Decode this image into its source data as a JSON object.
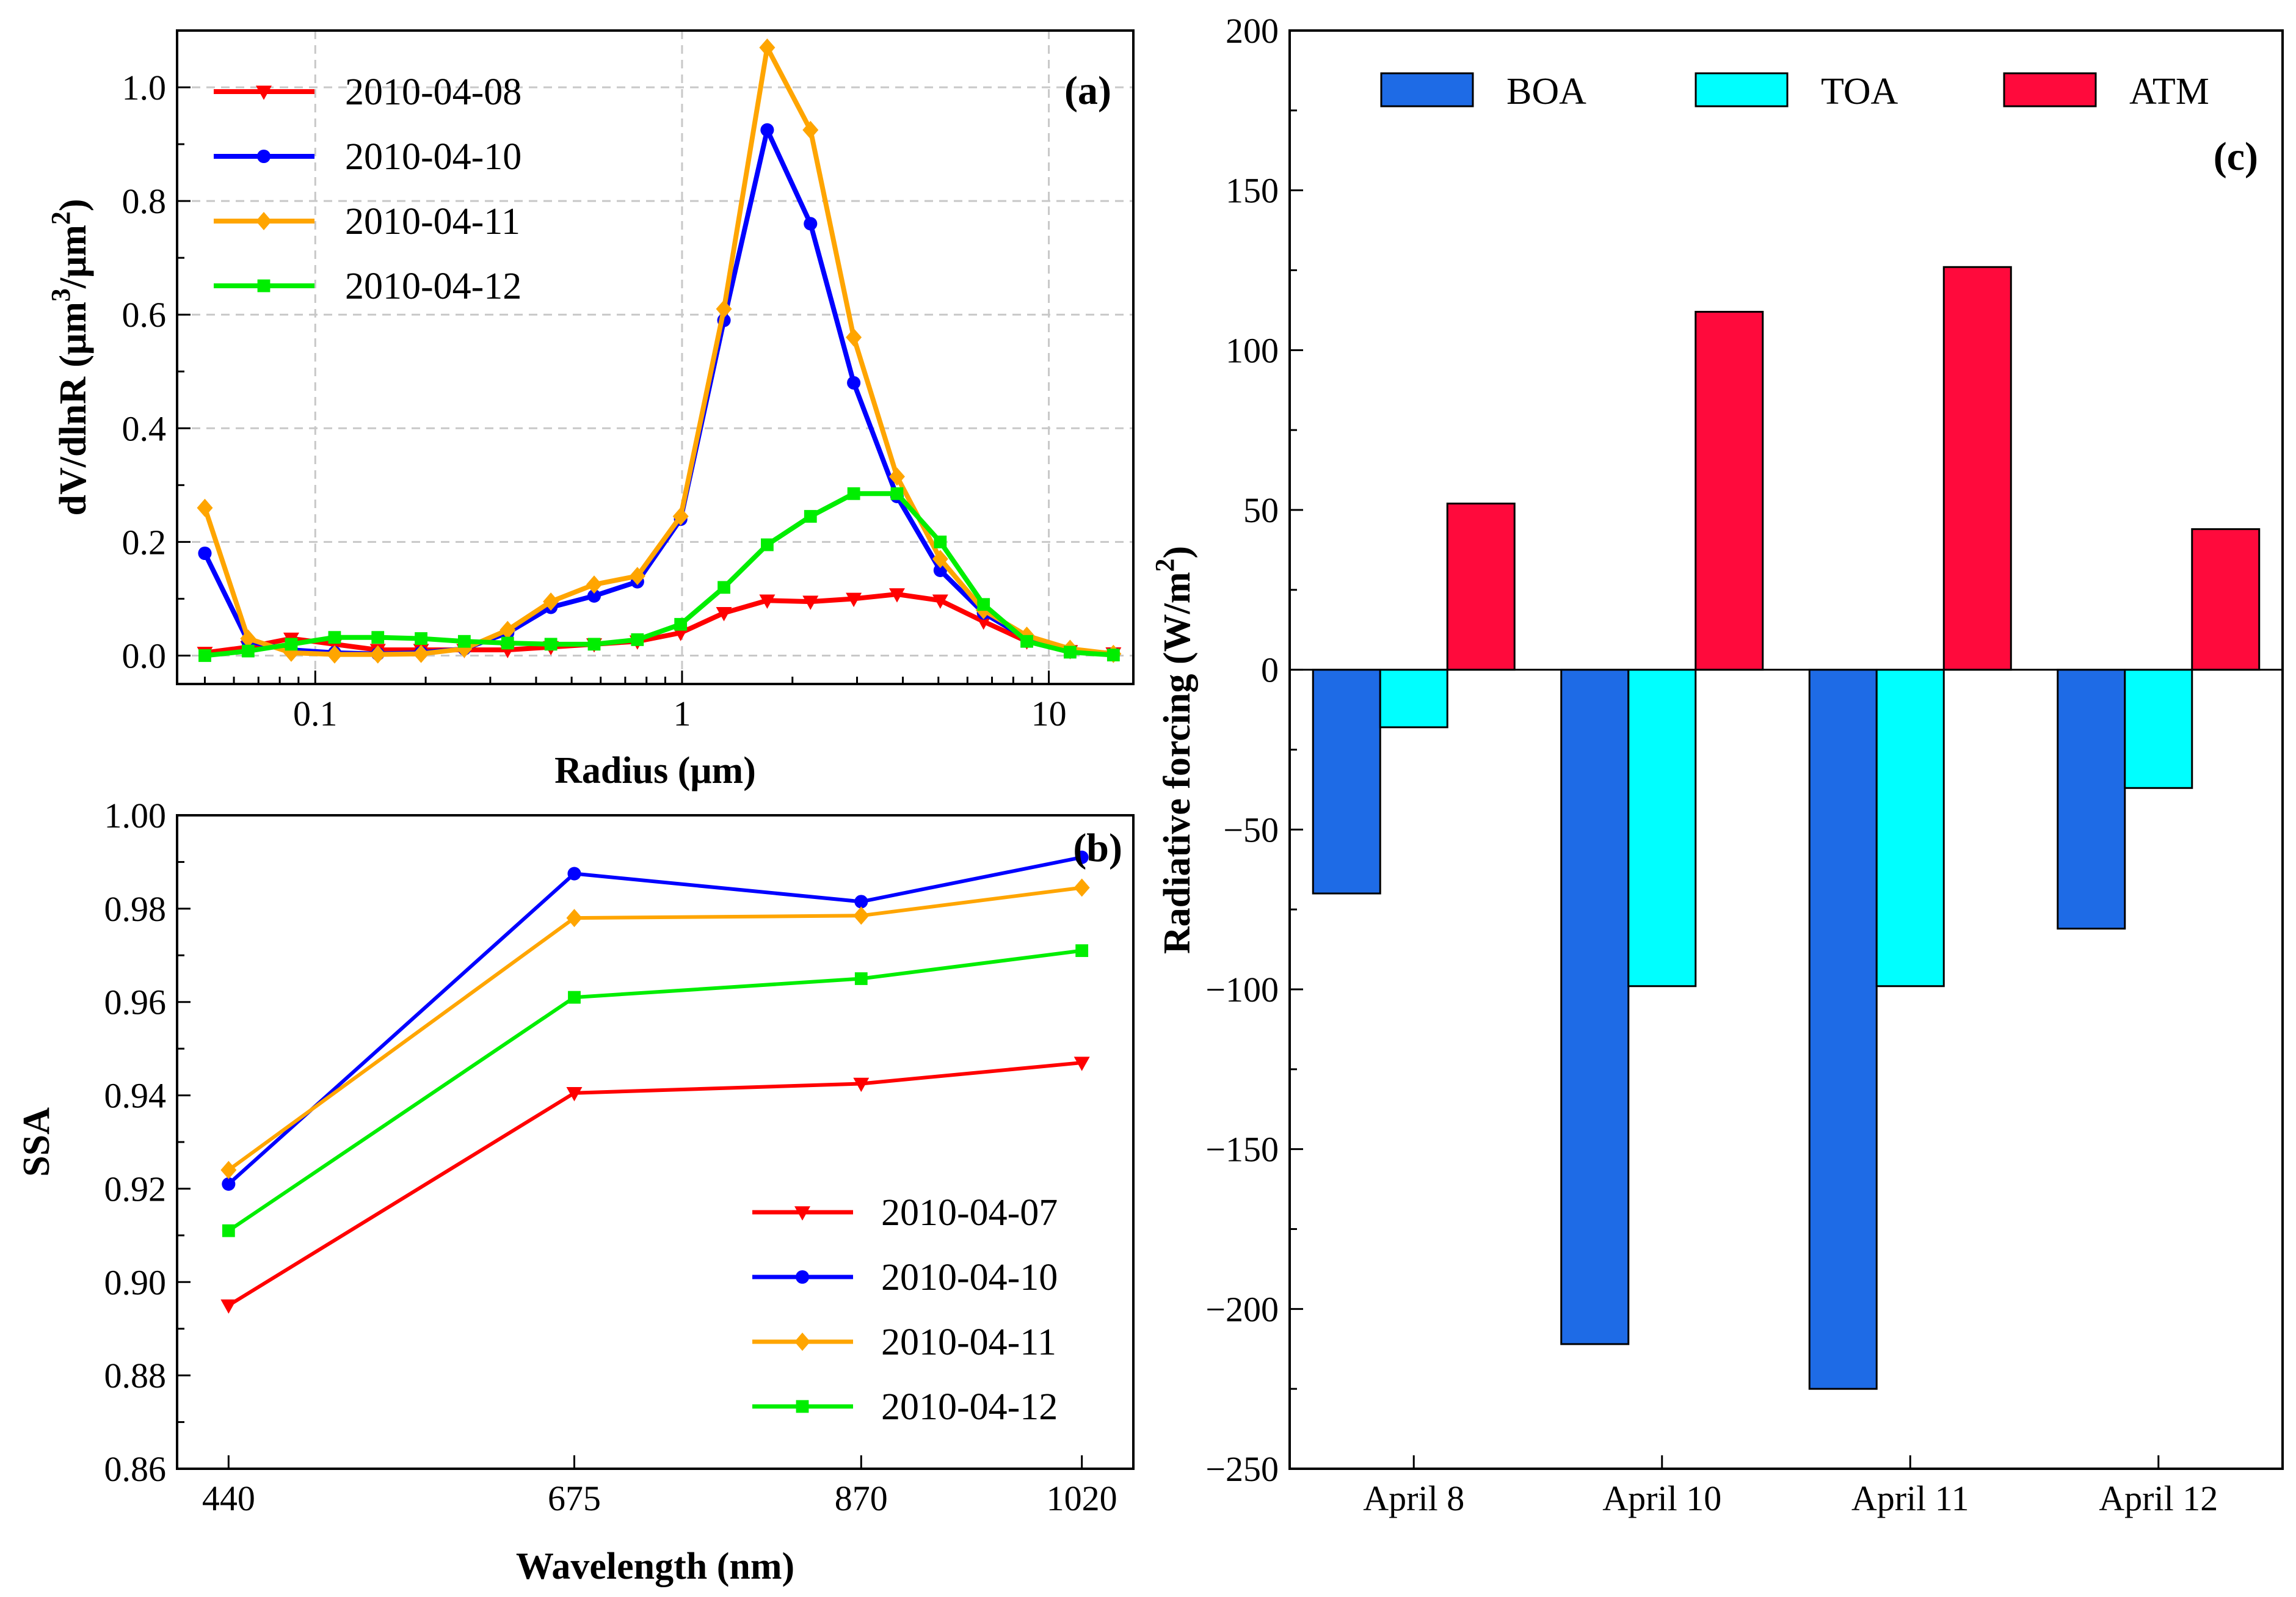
{
  "chart_data": [
    {
      "id": "a",
      "type": "line",
      "panel_label": "(a)",
      "xlabel": "Radius (μm)",
      "ylabel": "dV/dlnR (μm³/μm²)",
      "xscale": "log",
      "xlim": [
        0.042,
        17
      ],
      "ylim": [
        -0.05,
        1.1
      ],
      "xticks": [
        0.1,
        1,
        10
      ],
      "xtick_labels": [
        "0.1",
        "1",
        "10"
      ],
      "yticks": [
        0.0,
        0.2,
        0.4,
        0.6,
        0.8,
        1.0
      ],
      "ytick_labels": [
        "0.0",
        "0.2",
        "0.4",
        "0.6",
        "0.8",
        "1.0"
      ],
      "grid": true,
      "legend_position": "top-left",
      "x": [
        0.05,
        0.0656,
        0.086,
        0.1129,
        0.1481,
        0.1943,
        0.2549,
        0.3345,
        0.4389,
        0.5759,
        0.7556,
        0.9914,
        1.3009,
        1.7069,
        2.2396,
        2.9385,
        3.8556,
        5.0589,
        6.6378,
        8.7095,
        11.4277,
        15.0
      ],
      "series": [
        {
          "name": "2010-04-08",
          "color": "#ff0000",
          "marker": "triangle-down",
          "values": [
            0.005,
            0.015,
            0.03,
            0.02,
            0.01,
            0.01,
            0.01,
            0.01,
            0.015,
            0.02,
            0.025,
            0.04,
            0.075,
            0.097,
            0.095,
            0.1,
            0.108,
            0.097,
            0.06,
            0.025,
            0.008,
            0.004
          ]
        },
        {
          "name": "2010-04-10",
          "color": "#0000ff",
          "marker": "circle",
          "values": [
            0.18,
            0.025,
            0.01,
            0.005,
            0.003,
            0.005,
            0.012,
            0.04,
            0.085,
            0.105,
            0.13,
            0.24,
            0.59,
            0.925,
            0.76,
            0.48,
            0.28,
            0.15,
            0.075,
            0.03,
            0.01,
            0.003
          ]
        },
        {
          "name": "2010-04-11",
          "color": "#ffa500",
          "marker": "diamond",
          "values": [
            0.26,
            0.03,
            0.005,
            0.002,
            0.002,
            0.003,
            0.012,
            0.045,
            0.095,
            0.125,
            0.14,
            0.245,
            0.61,
            1.07,
            0.925,
            0.56,
            0.315,
            0.17,
            0.08,
            0.035,
            0.012,
            0.003
          ]
        },
        {
          "name": "2010-04-12",
          "color": "#00ee00",
          "marker": "square",
          "values": [
            0.0,
            0.008,
            0.02,
            0.032,
            0.032,
            0.03,
            0.025,
            0.022,
            0.02,
            0.02,
            0.028,
            0.055,
            0.12,
            0.195,
            0.245,
            0.285,
            0.285,
            0.2,
            0.09,
            0.025,
            0.006,
            0.001
          ]
        }
      ]
    },
    {
      "id": "b",
      "type": "line",
      "panel_label": "(b)",
      "xlabel": "Wavelength (nm)",
      "ylabel": "SSA",
      "xscale": "linear",
      "xlim": [
        405,
        1055
      ],
      "ylim": [
        0.86,
        1.0
      ],
      "xticks": [
        440,
        675,
        870,
        1020
      ],
      "xtick_labels": [
        "440",
        "675",
        "870",
        "1020"
      ],
      "yticks": [
        0.86,
        0.88,
        0.9,
        0.92,
        0.94,
        0.96,
        0.98,
        1.0
      ],
      "ytick_labels": [
        "0.86",
        "0.88",
        "0.90",
        "0.92",
        "0.94",
        "0.96",
        "0.98",
        "1.00"
      ],
      "grid": false,
      "legend_position": "bottom-right",
      "x": [
        440,
        675,
        870,
        1020
      ],
      "series": [
        {
          "name": "2010-04-07",
          "color": "#ff0000",
          "marker": "triangle-down",
          "values": [
            0.895,
            0.9405,
            0.9425,
            0.947
          ]
        },
        {
          "name": "2010-04-10",
          "color": "#0000ff",
          "marker": "circle",
          "values": [
            0.921,
            0.9875,
            0.9815,
            0.991
          ]
        },
        {
          "name": "2010-04-11",
          "color": "#ffa500",
          "marker": "diamond",
          "values": [
            0.924,
            0.978,
            0.9785,
            0.9845
          ]
        },
        {
          "name": "2010-04-12",
          "color": "#00ee00",
          "marker": "square",
          "values": [
            0.911,
            0.961,
            0.965,
            0.971
          ]
        }
      ]
    },
    {
      "id": "c",
      "type": "bar",
      "panel_label": "(c)",
      "xlabel": "",
      "ylabel": "Radiative forcing (W/m²)",
      "ylim": [
        -250,
        200
      ],
      "yticks": [
        -250,
        -200,
        -150,
        -100,
        -50,
        0,
        50,
        100,
        150,
        200
      ],
      "ytick_labels": [
        "−250",
        "−200",
        "−150",
        "−100",
        "−50",
        "0",
        "50",
        "100",
        "150",
        "200"
      ],
      "legend_position": "top",
      "categories": [
        "April 8",
        "April 10",
        "April 11",
        "April 12"
      ],
      "series": [
        {
          "name": "BOA",
          "color": "#1e6be6",
          "values": [
            -70,
            -211,
            -225,
            -81
          ]
        },
        {
          "name": "TOA",
          "color": "#00ffff",
          "values": [
            -18,
            -99,
            -99,
            -37
          ]
        },
        {
          "name": "ATM",
          "color": "#ff0a3c",
          "values": [
            52,
            112,
            126,
            44
          ]
        }
      ]
    }
  ]
}
